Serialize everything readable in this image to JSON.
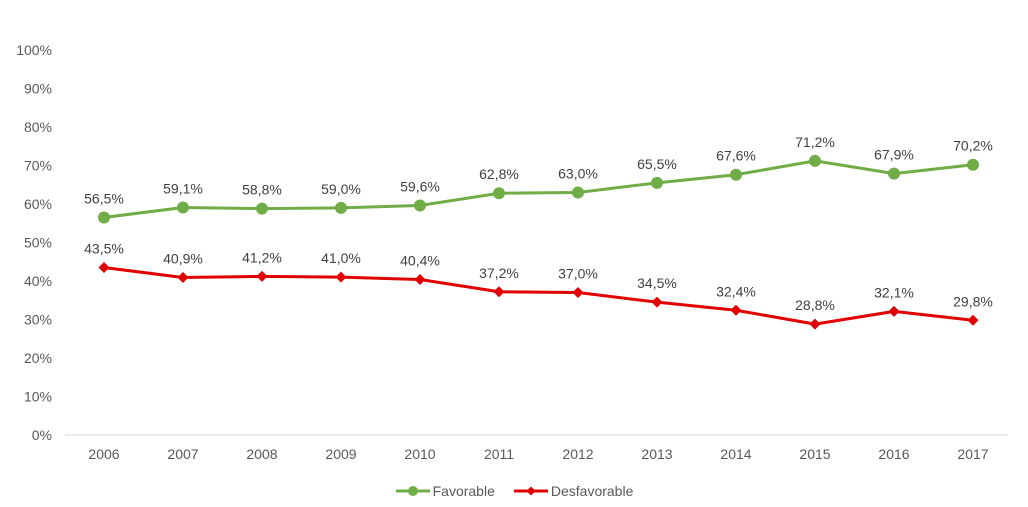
{
  "chart_data": {
    "type": "line",
    "title": "",
    "xlabel": "",
    "ylabel": "",
    "categories": [
      "2006",
      "2007",
      "2008",
      "2009",
      "2010",
      "2011",
      "2012",
      "2013",
      "2014",
      "2015",
      "2016",
      "2017"
    ],
    "series": [
      {
        "name": "Favorable",
        "color": "#70AD47",
        "marker": "circle",
        "values": [
          56.5,
          59.1,
          58.8,
          59.0,
          59.6,
          62.8,
          63.0,
          65.5,
          67.6,
          71.2,
          67.9,
          70.2
        ],
        "labels": [
          "56,5%",
          "59,1%",
          "58,8%",
          "59,0%",
          "59,6%",
          "62,8%",
          "63,0%",
          "65,5%",
          "67,6%",
          "71,2%",
          "67,9%",
          "70,2%"
        ]
      },
      {
        "name": "Desfavorable",
        "color": "#E00000",
        "marker": "diamond",
        "values": [
          43.5,
          40.9,
          41.2,
          41.0,
          40.4,
          37.2,
          37.0,
          34.5,
          32.4,
          28.8,
          32.1,
          29.8
        ],
        "labels": [
          "43,5%",
          "40,9%",
          "41,2%",
          "41,0%",
          "40,4%",
          "37,2%",
          "37,0%",
          "34,5%",
          "32,4%",
          "28,8%",
          "32,1%",
          "29,8%"
        ]
      }
    ],
    "ylim": [
      0,
      100
    ],
    "yticks": [
      0,
      10,
      20,
      30,
      40,
      50,
      60,
      70,
      80,
      90,
      100
    ],
    "ytick_labels": [
      "0%",
      "10%",
      "20%",
      "30%",
      "40%",
      "50%",
      "60%",
      "70%",
      "80%",
      "90%",
      "100%"
    ],
    "grid": false,
    "axis_line_color": "#D9D9D9",
    "legend_position": "bottom"
  }
}
